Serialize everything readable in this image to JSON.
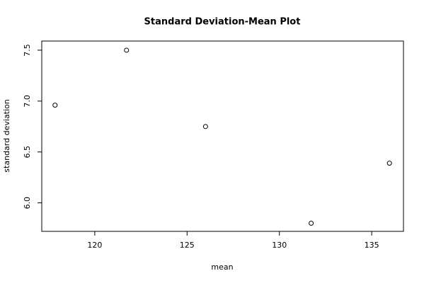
{
  "chart_data": {
    "type": "scatter",
    "title": "Standard Deviation-Mean Plot",
    "x_label": "mean",
    "y_label": "standard deviation",
    "x": [
      117.85,
      121.72,
      126.0,
      131.72,
      135.96
    ],
    "values": [
      6.96,
      7.5,
      6.75,
      5.8,
      6.39
    ],
    "color": "#000000",
    "xlim": [
      117.13,
      136.72
    ],
    "xticks": [
      120,
      125,
      130,
      135
    ],
    "ylim": [
      5.72,
      7.59
    ],
    "yticks": [
      {
        "value": 6,
        "label": "6.0"
      },
      {
        "value": 6.5,
        "label": "6.5"
      },
      {
        "value": 7,
        "label": "7.0"
      },
      {
        "value": 7.5,
        "label": "7.5"
      }
    ],
    "grid": false
  }
}
